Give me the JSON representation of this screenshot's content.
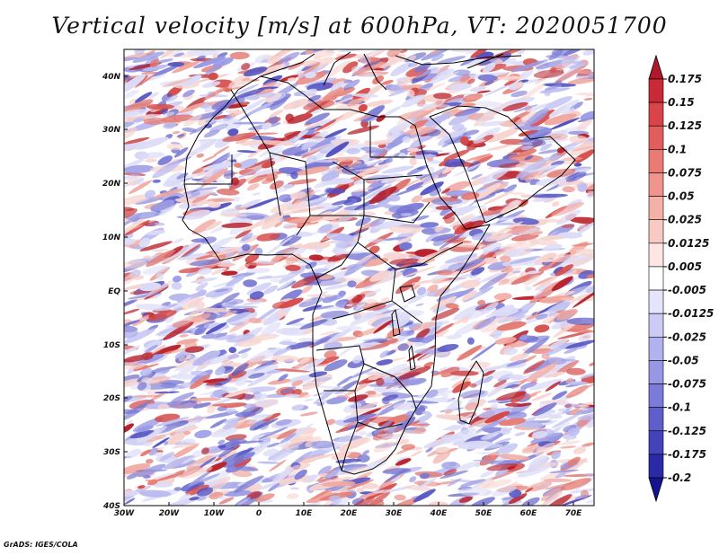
{
  "title": "Vertical velocity [m/s] at 600hPa, VT: 2020051700",
  "credit": "GrADS: IGES/COLA",
  "lat_labels": [
    "40N",
    "30N",
    "20N",
    "10N",
    "EQ",
    "10S",
    "20S",
    "30S",
    "40S"
  ],
  "lon_labels": [
    "30W",
    "20W",
    "10W",
    "0",
    "10E",
    "20E",
    "30E",
    "40E",
    "50E",
    "60E",
    "70E"
  ],
  "colorbar": {
    "labels": [
      "0.175",
      "0.15",
      "0.125",
      "0.1",
      "0.075",
      "0.05",
      "0.025",
      "0.0125",
      "0.005",
      "-0.005",
      "-0.0125",
      "-0.025",
      "-0.05",
      "-0.075",
      "-0.1",
      "-0.125",
      "-0.175",
      "-0.2"
    ],
    "colors": [
      "#b2182b",
      "#c92a36",
      "#d94448",
      "#e25e5c",
      "#ea7a74",
      "#f0958d",
      "#f5b0a8",
      "#f9cac4",
      "#fde6e3",
      "#ffffff",
      "#e4e4fb",
      "#cbcbf5",
      "#b2b2ee",
      "#9797e4",
      "#7b7bd9",
      "#5f5fcb",
      "#4343ba",
      "#2a2aa6",
      "#141490"
    ]
  },
  "colors": {
    "up": "#d6323c",
    "down": "#4b4bcc",
    "background": "#ffffff"
  }
}
